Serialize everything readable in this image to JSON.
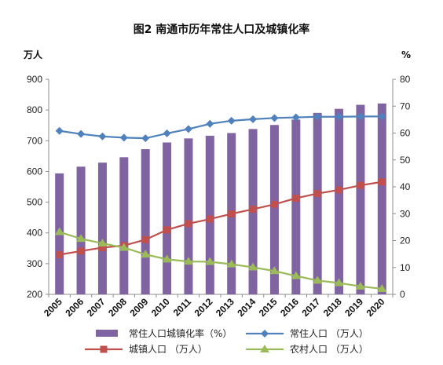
{
  "chart_data": {
    "type": "bar",
    "title": "图2  南通市历年常住人口及城镇化率",
    "left_axis_unit": "万人",
    "right_axis_unit": "%",
    "categories": [
      "2005",
      "2006",
      "2007",
      "2008",
      "2009",
      "2010",
      "2011",
      "2012",
      "2013",
      "2014",
      "2015",
      "2016",
      "2017",
      "2018",
      "2019",
      "2020"
    ],
    "ylim_left": [
      200,
      900
    ],
    "yticks_left": [
      200,
      300,
      400,
      500,
      600,
      700,
      800,
      900
    ],
    "ylim_right": [
      0,
      80
    ],
    "yticks_right": [
      0,
      10,
      20,
      30,
      40,
      50,
      60,
      70,
      80
    ],
    "grid": false,
    "legend_position": "bottom",
    "series": [
      {
        "name": "常住人口城镇化率（%）",
        "type": "bar",
        "axis": "right",
        "color": "#8064A2",
        "values": [
          45,
          47.5,
          49,
          51,
          54,
          56.5,
          58,
          59,
          60,
          61.5,
          63,
          65,
          67.5,
          69,
          70.5,
          71
        ]
      },
      {
        "name": "常住人口  （万人）",
        "type": "line",
        "marker": "diamond",
        "axis": "left",
        "color": "#4F81BD",
        "values": [
          732,
          722,
          714,
          710,
          708,
          724,
          738,
          755,
          765,
          770,
          774,
          776,
          778,
          778,
          779,
          779
        ]
      },
      {
        "name": "城镇人口  （万人）",
        "type": "line",
        "marker": "square",
        "axis": "left",
        "color": "#C0504D",
        "values": [
          329,
          341,
          352,
          359,
          378,
          410,
          430,
          445,
          462,
          477,
          493,
          513,
          528,
          540,
          555,
          566
        ]
      },
      {
        "name": "农村人口  （万人）",
        "type": "line",
        "marker": "triangle",
        "axis": "left",
        "color": "#9BBB59",
        "values": [
          403,
          381,
          366,
          352,
          330,
          314,
          307,
          306,
          298,
          288,
          276,
          260,
          245,
          237,
          226,
          218
        ]
      }
    ]
  }
}
